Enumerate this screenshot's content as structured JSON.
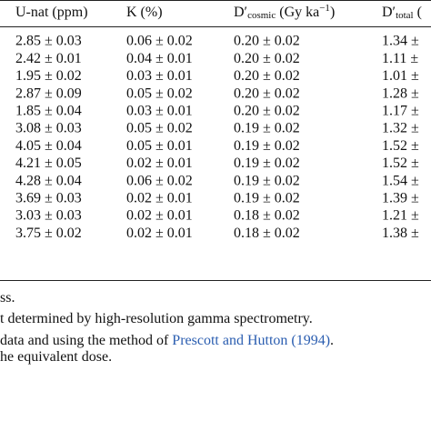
{
  "table": {
    "header": [
      [
        {
          "text": "U-nat (ppm)"
        }
      ],
      [
        {
          "text": "K (%)"
        }
      ],
      [
        {
          "text": "D′"
        },
        {
          "text": "cosmic",
          "sub": true
        },
        {
          "text": " (Gy ka"
        },
        {
          "text": "−1",
          "sup": true
        },
        {
          "text": ")"
        }
      ],
      [
        {
          "text": "D′"
        },
        {
          "text": "total",
          "sub": true
        },
        {
          "text": " ("
        }
      ]
    ],
    "rows": [
      [
        "2.85 ± 0.03",
        "0.06 ± 0.02",
        "0.20 ± 0.02",
        "1.34 ±"
      ],
      [
        "2.42 ± 0.01",
        "0.04 ± 0.01",
        "0.20 ± 0.02",
        "1.11 ±"
      ],
      [
        "1.95 ± 0.02",
        "0.03 ± 0.01",
        "0.20 ± 0.02",
        "1.01 ±"
      ],
      [
        "2.87 ± 0.09",
        "0.05 ± 0.02",
        "0.20 ± 0.02",
        "1.28 ±"
      ],
      [
        "1.85 ± 0.04",
        "0.03 ± 0.01",
        "0.20 ± 0.02",
        "1.17 ±"
      ],
      [
        "3.08 ± 0.03",
        "0.05 ± 0.02",
        "0.19 ± 0.02",
        "1.32 ±"
      ],
      [
        "4.05 ± 0.04",
        "0.05 ± 0.01",
        "0.19 ± 0.02",
        "1.52 ±"
      ],
      [
        "4.21 ± 0.05",
        "0.02 ± 0.01",
        "0.19 ± 0.02",
        "1.52 ±"
      ],
      [
        "4.28 ± 0.04",
        "0.06 ± 0.02",
        "0.19 ± 0.02",
        "1.54 ±"
      ],
      [
        "3.69 ± 0.03",
        "0.02 ± 0.01",
        "0.19 ± 0.02",
        "1.39 ±"
      ],
      [
        "3.03 ± 0.03",
        "0.02 ± 0.01",
        "0.18 ± 0.02",
        "1.21 ±"
      ],
      [
        "3.75 ± 0.02",
        "0.02 ± 0.01",
        "0.18 ± 0.02",
        "1.38 ±"
      ]
    ]
  },
  "footnotes": [
    [
      {
        "text": "ss."
      }
    ],
    [
      {
        "text": "t determined by high-resolution gamma spectrometry."
      }
    ],
    [
      {
        "text": "data and using the method of "
      },
      {
        "text": "Prescott and Hutton (1994)",
        "link": true
      },
      {
        "text": "."
      }
    ],
    [
      {
        "text": "he equivalent dose."
      }
    ]
  ]
}
